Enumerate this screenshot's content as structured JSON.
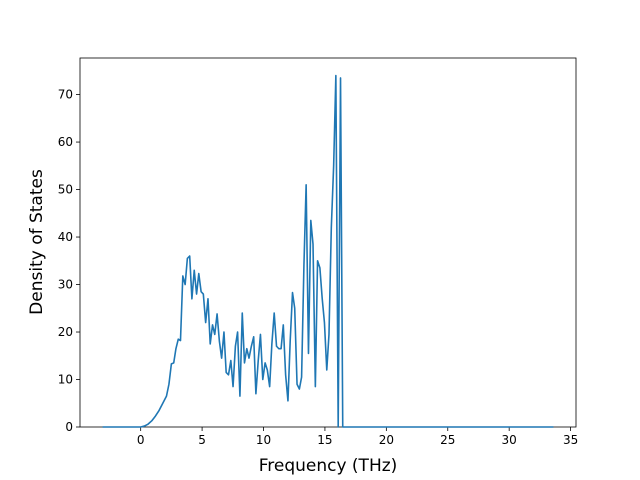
{
  "chart_data": {
    "type": "line",
    "x_label": "Frequency (THz)",
    "y_label": "Density of States",
    "color": "#1f77b4",
    "x": [
      -3.1,
      0,
      0.3,
      0.6,
      0.9,
      1.2,
      1.5,
      1.8,
      2.1,
      2.3,
      2.5,
      2.69,
      2.87,
      3.06,
      3.24,
      3.43,
      3.62,
      3.8,
      3.99,
      4.17,
      4.36,
      4.55,
      4.73,
      4.92,
      5.1,
      5.29,
      5.48,
      5.66,
      5.85,
      6.03,
      6.22,
      6.41,
      6.59,
      6.78,
      6.96,
      7.15,
      7.34,
      7.52,
      7.71,
      7.89,
      8.08,
      8.27,
      8.45,
      8.64,
      8.82,
      9.01,
      9.2,
      9.38,
      9.57,
      9.75,
      9.94,
      10.13,
      10.31,
      10.5,
      10.68,
      10.87,
      11.06,
      11.24,
      11.43,
      11.61,
      11.8,
      11.99,
      12.17,
      12.36,
      12.54,
      12.73,
      12.92,
      13.1,
      13.29,
      13.47,
      13.66,
      13.85,
      14.03,
      14.22,
      14.4,
      14.59,
      14.78,
      14.96,
      15.15,
      15.33,
      15.52,
      15.71,
      15.89,
      16.08,
      16.27,
      16.45,
      33.6
    ],
    "values": [
      0,
      0,
      0.2,
      0.6,
      1.3,
      2.3,
      3.5,
      5,
      6.5,
      9,
      13.3,
      13.5,
      16.5,
      18.5,
      18.2,
      31.8,
      30,
      35.5,
      36,
      27,
      33,
      28,
      32.3,
      28.5,
      28,
      22,
      27,
      17.5,
      21.5,
      19.5,
      23.8,
      18,
      14.5,
      20,
      11.5,
      11,
      14,
      8.5,
      17,
      20,
      6.5,
      24,
      13.5,
      16.5,
      14.5,
      17,
      19,
      7,
      14,
      19.5,
      10,
      13.5,
      12,
      8.5,
      17.5,
      24,
      17,
      16.5,
      16.5,
      21.5,
      11,
      5.5,
      18,
      28.3,
      25,
      9,
      8,
      10.5,
      34,
      51,
      15.5,
      43.5,
      38.5,
      8.5,
      35,
      33.5,
      27,
      22,
      12,
      19.5,
      42,
      55,
      74,
      0,
      73.5,
      0,
      0
    ],
    "xlim": [
      -4.94,
      35.44
    ],
    "xticks": [
      0,
      5,
      10,
      15,
      20,
      25,
      30,
      35
    ],
    "ylim": [
      0,
      77.7
    ],
    "yticks": [
      0,
      10,
      20,
      30,
      40,
      50,
      60,
      70
    ]
  }
}
